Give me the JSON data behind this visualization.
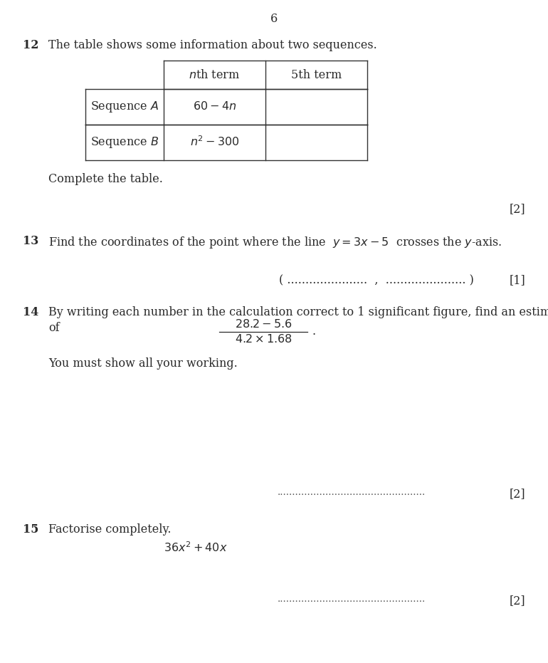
{
  "page_number": "6",
  "background_color": "#ffffff",
  "text_color": "#2a2a2a",
  "q12_number": "12",
  "q12_text": "The table shows some information about two sequences.",
  "q12_complete": "Complete the table.",
  "q12_mark": "[2]",
  "q13_number": "13",
  "q13_mark": "[1]",
  "q14_number": "14",
  "q14_mark": "[2]",
  "q14_working": "You must show all your working.",
  "q15_number": "15",
  "q15_text": "Factorise completely.",
  "q15_mark": "[2]",
  "font_size": 11.5
}
